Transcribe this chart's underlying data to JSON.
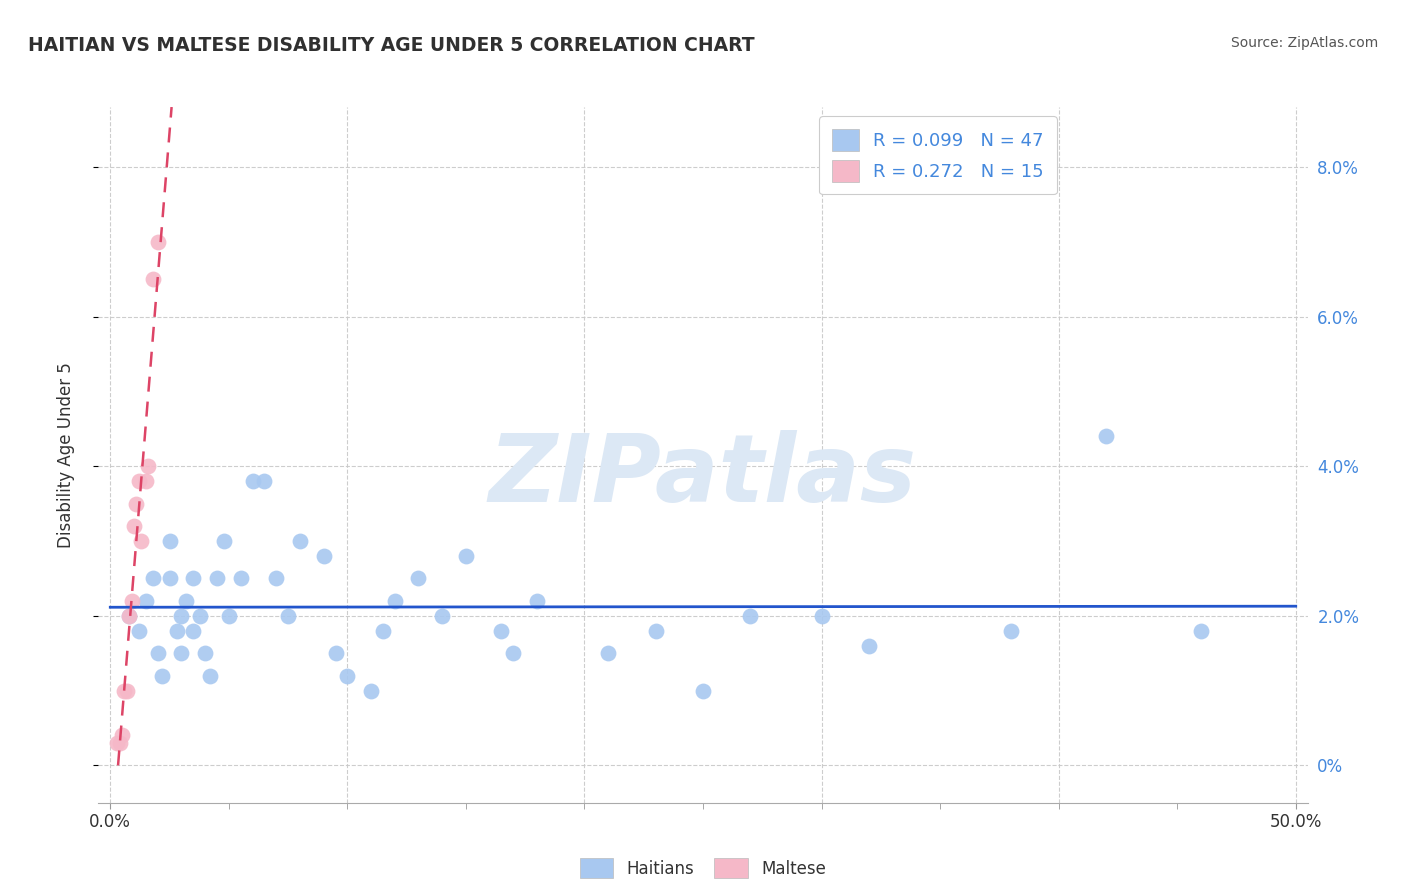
{
  "title": "HAITIAN VS MALTESE DISABILITY AGE UNDER 5 CORRELATION CHART",
  "source": "Source: ZipAtlas.com",
  "ylabel": "Disability Age Under 5",
  "xlim": [
    -0.005,
    0.505
  ],
  "ylim": [
    -0.005,
    0.088
  ],
  "xticklabels_pos": [
    0.0,
    0.5
  ],
  "xticklabels": [
    "0.0%",
    "50.0%"
  ],
  "yticks_right": [
    0.0,
    0.02,
    0.04,
    0.06,
    0.08
  ],
  "yticklabels_right": [
    "0%",
    "2.0%",
    "4.0%",
    "6.0%",
    "8.0%"
  ],
  "haitian_color": "#a8c8f0",
  "maltese_color": "#f5b8c8",
  "haitian_R": 0.099,
  "haitian_N": 47,
  "maltese_R": 0.272,
  "maltese_N": 15,
  "trend_blue_color": "#2255cc",
  "trend_pink_color": "#dd4466",
  "watermark": "ZIPatlas",
  "watermark_color": "#dce8f5",
  "background_color": "#ffffff",
  "grid_color": "#c8c8c8",
  "title_color": "#303030",
  "axis_label_color": "#4488dd",
  "haitian_x": [
    0.008,
    0.012,
    0.015,
    0.018,
    0.02,
    0.022,
    0.025,
    0.025,
    0.028,
    0.03,
    0.03,
    0.032,
    0.035,
    0.035,
    0.038,
    0.04,
    0.042,
    0.045,
    0.048,
    0.05,
    0.055,
    0.06,
    0.065,
    0.07,
    0.075,
    0.08,
    0.09,
    0.095,
    0.1,
    0.11,
    0.115,
    0.12,
    0.13,
    0.14,
    0.15,
    0.165,
    0.17,
    0.18,
    0.21,
    0.23,
    0.25,
    0.27,
    0.3,
    0.32,
    0.38,
    0.42,
    0.46
  ],
  "haitian_y": [
    0.02,
    0.018,
    0.022,
    0.025,
    0.015,
    0.012,
    0.03,
    0.025,
    0.018,
    0.02,
    0.015,
    0.022,
    0.025,
    0.018,
    0.02,
    0.015,
    0.012,
    0.025,
    0.03,
    0.02,
    0.025,
    0.038,
    0.038,
    0.025,
    0.02,
    0.03,
    0.028,
    0.015,
    0.012,
    0.01,
    0.018,
    0.022,
    0.025,
    0.02,
    0.028,
    0.018,
    0.015,
    0.022,
    0.015,
    0.018,
    0.01,
    0.02,
    0.02,
    0.016,
    0.018,
    0.044,
    0.018
  ],
  "maltese_x": [
    0.003,
    0.004,
    0.005,
    0.006,
    0.007,
    0.008,
    0.009,
    0.01,
    0.011,
    0.012,
    0.013,
    0.015,
    0.016,
    0.018,
    0.02
  ],
  "maltese_y": [
    0.003,
    0.003,
    0.004,
    0.01,
    0.01,
    0.02,
    0.022,
    0.032,
    0.035,
    0.038,
    0.03,
    0.038,
    0.04,
    0.065,
    0.07
  ]
}
